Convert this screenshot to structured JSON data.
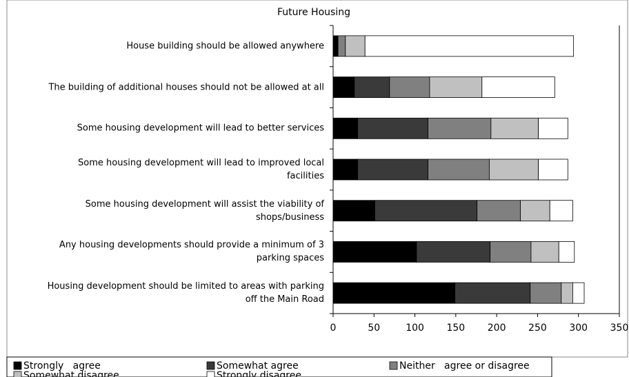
{
  "chart_data": {
    "type": "stacked-barh",
    "title": "Future Housing",
    "categories": [
      "House building should be allowed anywhere",
      "The building of additional houses should not be allowed at all",
      "Some housing development will lead to better services",
      "Some housing development will lead to improved local\nfacilities",
      "Some housing development will assist the viability of\nshops/business",
      "Any housing developments should provide a minimum of 3\nparking spaces",
      "Housing development should be limited to areas with parking\noff the Main Road"
    ],
    "series": [
      {
        "name": "Strongly   agree",
        "color": "#000000",
        "values": [
          6,
          26,
          30,
          30,
          51,
          102,
          149
        ]
      },
      {
        "name": "Somewhat agree",
        "color": "#3a3a3a",
        "values": [
          0,
          43,
          86,
          86,
          125,
          90,
          92
        ]
      },
      {
        "name": "Neither   agree or disagree",
        "color": "#808080",
        "values": [
          9,
          49,
          77,
          75,
          53,
          50,
          38
        ]
      },
      {
        "name": "Somewhat disagree",
        "color": "#c0c0c0",
        "values": [
          24,
          64,
          58,
          60,
          36,
          34,
          14
        ]
      },
      {
        "name": "Strongly disagree",
        "color": "#ffffff",
        "values": [
          255,
          89,
          36,
          36,
          28,
          19,
          14
        ]
      }
    ],
    "xlim": [
      0,
      350
    ],
    "xticks": [
      0,
      50,
      100,
      150,
      200,
      250,
      300,
      350
    ],
    "grid": false
  }
}
